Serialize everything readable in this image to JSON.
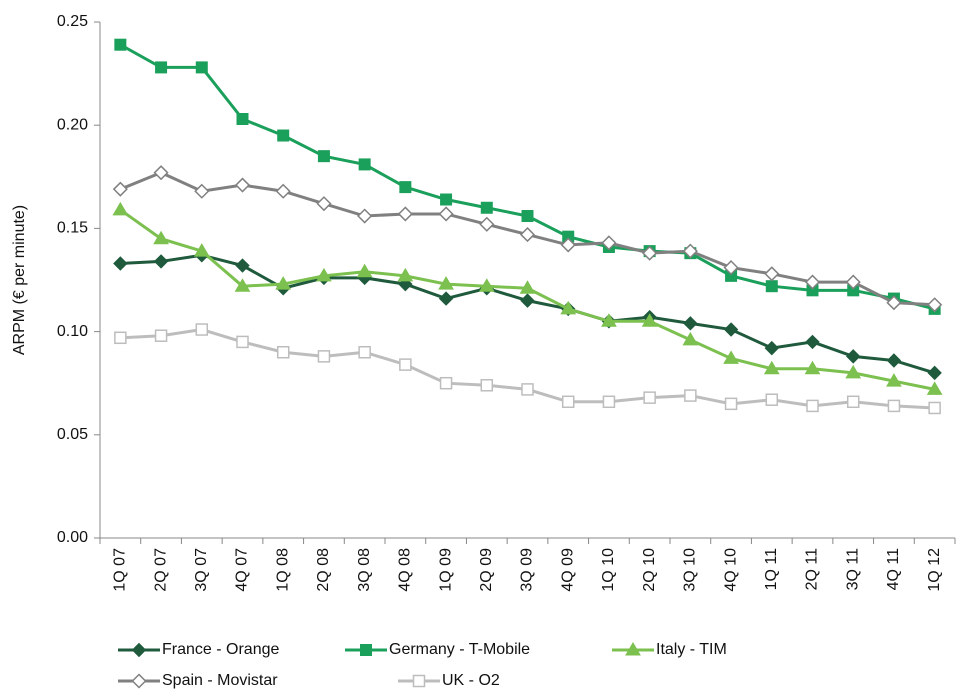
{
  "chart_data": {
    "type": "line",
    "y_label": "ARPM (€ per minute)",
    "categories": [
      "1Q 07",
      "2Q 07",
      "3Q 07",
      "4Q 07",
      "1Q 08",
      "2Q 08",
      "3Q 08",
      "4Q 08",
      "1Q 09",
      "2Q 09",
      "3Q 09",
      "4Q 09",
      "1Q 10",
      "2Q 10",
      "3Q 10",
      "4Q 10",
      "1Q 11",
      "2Q 11",
      "3Q 11",
      "4Q 11",
      "1Q 12"
    ],
    "series": [
      {
        "name": "France - Orange",
        "color": "#1f5a3d",
        "marker": "diamond",
        "values": [
          0.133,
          0.134,
          0.137,
          0.132,
          0.121,
          0.126,
          0.126,
          0.123,
          0.116,
          0.121,
          0.115,
          0.111,
          0.105,
          0.107,
          0.104,
          0.101,
          0.092,
          0.095,
          0.088,
          0.086,
          0.08
        ]
      },
      {
        "name": "Germany - T-Mobile",
        "color": "#1ba05b",
        "marker": "square",
        "values": [
          0.239,
          0.228,
          0.228,
          0.203,
          0.195,
          0.185,
          0.181,
          0.17,
          0.164,
          0.16,
          0.156,
          0.146,
          0.141,
          0.139,
          0.138,
          0.127,
          0.122,
          0.12,
          0.12,
          0.116,
          0.111
        ]
      },
      {
        "name": "Italy - TIM",
        "color": "#7cc04f",
        "marker": "triangle",
        "values": [
          0.159,
          0.145,
          0.139,
          0.122,
          0.123,
          0.127,
          0.129,
          0.127,
          0.123,
          0.122,
          0.121,
          0.111,
          0.105,
          0.105,
          0.096,
          0.087,
          0.082,
          0.082,
          0.08,
          0.076,
          0.072
        ]
      },
      {
        "name": "Spain - Movistar",
        "color": "#808080",
        "marker": "diamond-open",
        "values": [
          0.169,
          0.177,
          0.168,
          0.171,
          0.168,
          0.162,
          0.156,
          0.157,
          0.157,
          0.152,
          0.147,
          0.142,
          0.143,
          0.138,
          0.139,
          0.131,
          0.128,
          0.124,
          0.124,
          0.114,
          0.113
        ]
      },
      {
        "name": "UK - O2",
        "color": "#bdbdbd",
        "marker": "square-open",
        "values": [
          0.097,
          0.098,
          0.101,
          0.095,
          0.09,
          0.088,
          0.09,
          0.084,
          0.075,
          0.074,
          0.072,
          0.066,
          0.066,
          0.068,
          0.069,
          0.065,
          0.067,
          0.064,
          0.066,
          0.064,
          0.063
        ]
      }
    ],
    "ylim": [
      0,
      0.25
    ],
    "yticks": [
      {
        "value": 0,
        "label": "0.00"
      },
      0.05,
      {
        "value": 0.1,
        "label": "0.10"
      },
      0.15,
      {
        "value": 0.2,
        "label": "0.20"
      },
      0.25
    ],
    "grid": false,
    "legend": "bottom"
  }
}
